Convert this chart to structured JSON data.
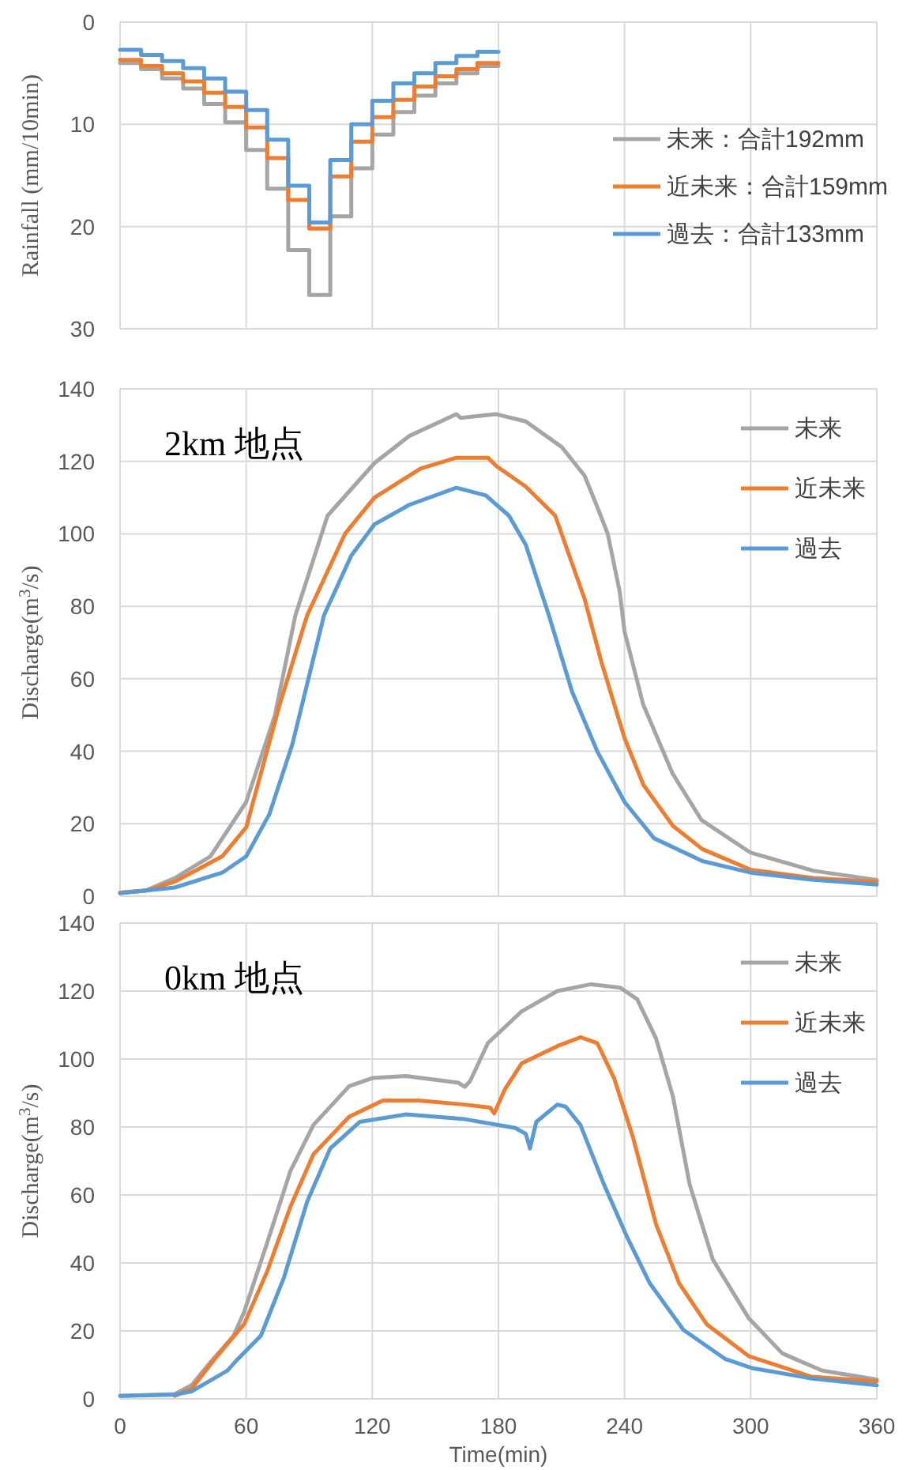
{
  "chart_data": [
    {
      "type": "step",
      "ylabel": "Rainfall (mm/10min)",
      "xlim": [
        0,
        360
      ],
      "xticks": [
        {
          "value": 0,
          "label": null
        },
        {
          "value": 60,
          "label": null
        },
        {
          "value": 120,
          "label": null
        },
        {
          "value": 180,
          "label": null
        },
        {
          "value": 240,
          "label": null
        },
        {
          "value": 300,
          "label": null
        },
        {
          "value": 360,
          "label": null
        }
      ],
      "ylim": [
        30,
        0
      ],
      "yticks": [
        0,
        10,
        20,
        30
      ],
      "grid": true,
      "legend": "right",
      "tick_labels": "y",
      "line_style": "solid",
      "x": [
        0,
        10,
        20,
        30,
        40,
        50,
        60,
        70,
        80,
        90,
        100,
        110,
        120,
        130,
        140,
        150,
        160,
        170,
        180
      ],
      "series": [
        {
          "name": "未来：合計192mm",
          "color": "#a5a5a5",
          "values": [
            4,
            4.6,
            5.5,
            6.5,
            8,
            9.8,
            12.5,
            16.3,
            22.3,
            26.7,
            19,
            14.3,
            11,
            8.8,
            7.2,
            6,
            5,
            4.3,
            4.3
          ]
        },
        {
          "name": "近未来：合計159mm",
          "color": "#ed7d31",
          "values": [
            3.7,
            4.3,
            5,
            5.8,
            6.9,
            8.3,
            10.3,
            13.3,
            17.4,
            20.2,
            15.1,
            11.7,
            9.3,
            7.6,
            6.3,
            5.3,
            4.6,
            4,
            4
          ]
        },
        {
          "name": "過去：合計133mm",
          "color": "#5b9bd5",
          "values": [
            2.7,
            3.2,
            3.8,
            4.5,
            5.5,
            6.8,
            8.6,
            11.5,
            16,
            19.6,
            13.5,
            10,
            7.7,
            6,
            5,
            4,
            3.3,
            2.9,
            2.9
          ]
        }
      ]
    },
    {
      "type": "line",
      "ylabel": "Discharge(m$^{3}$/s)",
      "annotations": [
        "2km 地点"
      ],
      "xlim": [
        0,
        360
      ],
      "xticks": [
        {
          "value": 0,
          "label": null
        },
        {
          "value": 60,
          "label": null
        },
        {
          "value": 120,
          "label": null
        },
        {
          "value": 180,
          "label": null
        },
        {
          "value": 240,
          "label": null
        },
        {
          "value": 300,
          "label": null
        },
        {
          "value": 360,
          "label": null
        }
      ],
      "ylim": [
        0,
        140
      ],
      "yticks": [
        0,
        20,
        40,
        60,
        80,
        100,
        120,
        140
      ],
      "grid": true,
      "legend": "top right",
      "tick_labels": "y",
      "line_style": "solid",
      "series": [
        {
          "name": "未来",
          "color": "#a5a5a5",
          "x": [
            0,
            12.5,
            26,
            43,
            60,
            73.7,
            83.4,
            98.7,
            121,
            137.6,
            160,
            162,
            170,
            179,
            193,
            210,
            221,
            226.6,
            232,
            237.7,
            240,
            248.8,
            262.7,
            276.6,
            300,
            330,
            360
          ],
          "values": [
            1,
            1.6,
            5,
            11,
            26,
            50,
            77.5,
            105,
            119.5,
            127,
            133,
            132,
            132.5,
            133,
            131,
            124,
            116,
            108,
            100,
            84,
            73,
            53,
            34,
            21,
            12,
            7,
            4.5
          ]
        },
        {
          "name": "近未来",
          "color": "#ed7d31",
          "x": [
            0,
            12.5,
            26,
            48.6,
            60,
            76,
            89,
            107,
            121,
            143,
            160,
            175,
            179,
            193,
            207,
            221,
            229,
            240,
            249,
            263,
            277,
            300,
            330,
            360
          ],
          "values": [
            1,
            1.6,
            4,
            11,
            19,
            53,
            77.5,
            100,
            110,
            118,
            121,
            121,
            118.7,
            113,
            105,
            82,
            64.6,
            43.6,
            30.7,
            19.4,
            13,
            7.3,
            5,
            4
          ]
        },
        {
          "name": "過去",
          "color": "#5b9bd5",
          "x": [
            0,
            26,
            48.6,
            60,
            71,
            82,
            97,
            110,
            121,
            137.6,
            160,
            174,
            185,
            193,
            204,
            215,
            227,
            240,
            254,
            277,
            300,
            330,
            360
          ],
          "values": [
            0.8,
            2.4,
            6.5,
            11,
            22.6,
            42,
            77.5,
            94,
            102.6,
            108,
            112.7,
            110.6,
            105,
            97,
            77.5,
            56.5,
            40,
            26,
            16,
            9.7,
            6.5,
            4.5,
            3.2
          ]
        }
      ]
    },
    {
      "type": "line",
      "xlabel": "Time(min)",
      "ylabel": "Discharge(m$^{3}$/s)",
      "annotations": [
        "0km 地点"
      ],
      "xlim": [
        0,
        360
      ],
      "xticks": [
        0,
        60,
        120,
        180,
        240,
        300,
        360
      ],
      "ylim": [
        0,
        140
      ],
      "yticks": [
        0,
        20,
        40,
        60,
        80,
        100,
        120,
        140
      ],
      "grid": true,
      "legend": "top right",
      "line_style": "solid",
      "series": [
        {
          "name": "未来",
          "color": "#a5a5a5",
          "x": [
            0,
            26,
            34,
            43,
            54,
            59,
            70,
            81,
            92,
            109,
            120,
            136,
            161,
            164,
            166.5,
            175,
            191,
            208,
            224,
            238,
            246,
            255,
            263,
            271,
            282,
            299,
            315,
            334,
            360
          ],
          "values": [
            0.9,
            1.4,
            4,
            10.8,
            18.6,
            25.5,
            46,
            67,
            80.6,
            92,
            94.4,
            95,
            93,
            91.8,
            93.5,
            104.7,
            114,
            120,
            122,
            121,
            117.6,
            106,
            89,
            63,
            41,
            23.8,
            13.4,
            8.3,
            5.7
          ]
        },
        {
          "name": "近未来",
          "color": "#ed7d31",
          "x": [
            26,
            34,
            45,
            59,
            70,
            81,
            92,
            109,
            125,
            142,
            164,
            176,
            178,
            183,
            191,
            208,
            219,
            227,
            235,
            244,
            255,
            266,
            279,
            299,
            329,
            360
          ],
          "values": [
            0.9,
            3,
            11.7,
            22,
            37.5,
            56.5,
            72,
            83,
            87.8,
            87.8,
            86.6,
            85.7,
            84,
            91,
            98.7,
            103.8,
            106.4,
            104.7,
            94.4,
            77,
            51.3,
            34,
            22,
            12.6,
            6.5,
            5.2
          ]
        },
        {
          "name": "過去",
          "color": "#5b9bd5",
          "x": [
            0,
            26,
            34,
            51,
            56,
            67,
            78,
            89,
            100,
            114,
            136,
            164,
            180,
            188,
            193,
            195,
            198,
            208,
            212,
            219,
            230,
            241,
            252,
            268,
            288,
            301,
            329,
            360
          ],
          "values": [
            0.9,
            1.2,
            2.2,
            8.3,
            11.7,
            18.6,
            35.8,
            58,
            73.7,
            81.5,
            83.7,
            82.3,
            80.6,
            79.7,
            78,
            73.7,
            81.5,
            86.6,
            86,
            80.6,
            63.4,
            47.9,
            34,
            20.3,
            11.7,
            9,
            6,
            4
          ]
        }
      ]
    }
  ]
}
